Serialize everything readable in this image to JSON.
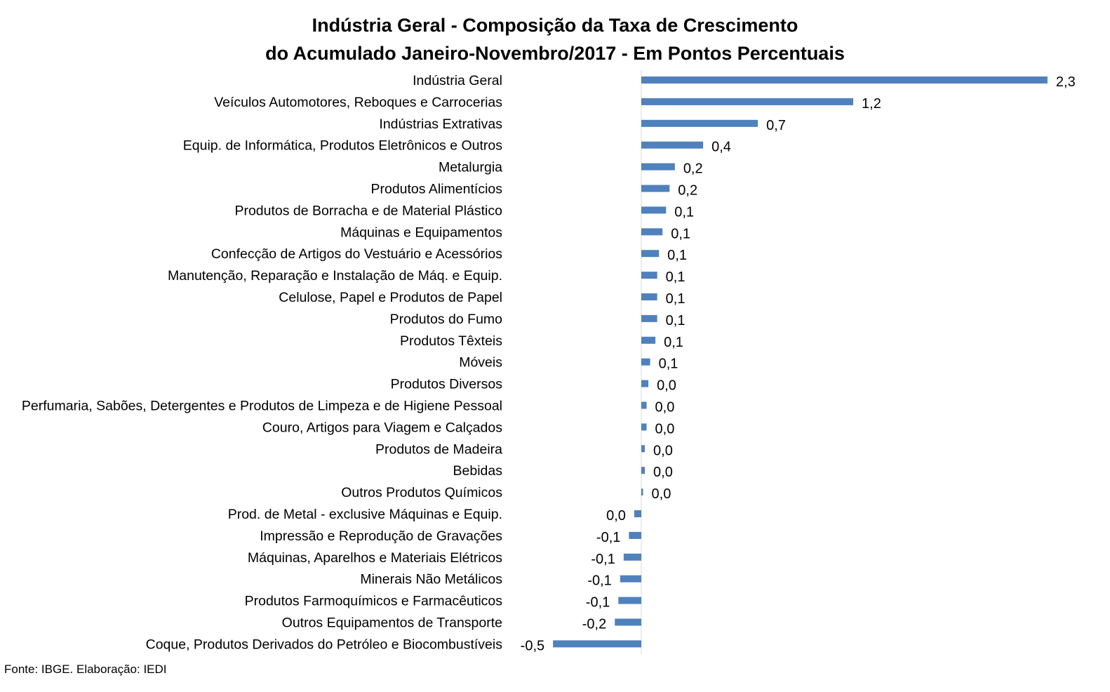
{
  "chart_data": {
    "type": "bar",
    "orientation": "horizontal",
    "title": "Indústria Geral - Composição da Taxa de Crescimento do Acumulado Janeiro-Novembro/2017 - Em Pontos Percentuais",
    "title_lines": [
      "Indústria Geral - Composição da Taxa de Crescimento",
      "do Acumulado Janeiro-Novembro/2017 - Em Pontos Percentuais"
    ],
    "xlabel": "",
    "ylabel": "",
    "xlim": [
      -0.62,
      2.35
    ],
    "grid": false,
    "legend": "none",
    "bar_color": "#4f81bd",
    "categories": [
      "Indústria Geral",
      "Veículos Automotores, Reboques e Carrocerias",
      "Indústrias Extrativas",
      "Equip. de Informática, Produtos Eletrônicos e Outros",
      "Metalurgia",
      "Produtos Alimentícios",
      "Produtos de Borracha e de Material Plástico",
      "Máquinas e Equipamentos",
      "Confecção de Artigos do Vestuário e Acessórios",
      "Manutenção, Reparação e Instalação de Máq. e Equip.",
      "Celulose, Papel e Produtos de Papel",
      "Produtos do Fumo",
      "Produtos Têxteis",
      "Móveis",
      "Produtos Diversos",
      "Perfumaria, Sabões, Detergentes e Produtos de Limpeza e de Higiene Pessoal",
      "Couro, Artigos para Viagem e Calçados",
      "Produtos de Madeira",
      "Bebidas",
      "Outros Produtos Químicos",
      "Prod. de Metal - exclusive Máquinas e Equip.",
      "Impressão e Reprodução de Gravações",
      "Máquinas, Aparelhos e Materiais Elétricos",
      "Minerais Não Metálicos",
      "Produtos Farmoquímicos e Farmacêuticos",
      "Outros Equipamentos de Transporte",
      "Coque, Produtos Derivados do Petróleo e Biocombustíveis"
    ],
    "values": [
      2.3,
      1.2,
      0.66,
      0.35,
      0.19,
      0.16,
      0.14,
      0.12,
      0.1,
      0.09,
      0.09,
      0.09,
      0.08,
      0.05,
      0.04,
      0.03,
      0.03,
      0.02,
      0.02,
      0.01,
      -0.04,
      -0.07,
      -0.1,
      -0.12,
      -0.13,
      -0.15,
      -0.5
    ],
    "value_labels": [
      "2,3",
      "1,2",
      "0,7",
      "0,4",
      "0,2",
      "0,2",
      "0,1",
      "0,1",
      "0,1",
      "0,1",
      "0,1",
      "0,1",
      "0,1",
      "0,1",
      "0,0",
      "0,0",
      "0,0",
      "0,0",
      "0,0",
      "0,0",
      "0,0",
      "-0,1",
      "-0,1",
      "-0,1",
      "-0,1",
      "-0,2",
      "-0,5"
    ]
  },
  "source": "Fonte: IBGE. Elaboração: IEDI"
}
